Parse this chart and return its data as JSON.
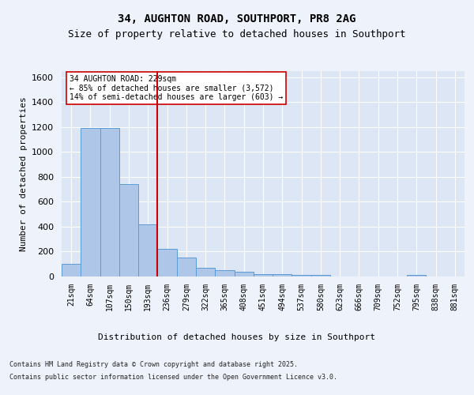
{
  "title1": "34, AUGHTON ROAD, SOUTHPORT, PR8 2AG",
  "title2": "Size of property relative to detached houses in Southport",
  "xlabel": "Distribution of detached houses by size in Southport",
  "ylabel": "Number of detached properties",
  "categories": [
    "21sqm",
    "64sqm",
    "107sqm",
    "150sqm",
    "193sqm",
    "236sqm",
    "279sqm",
    "322sqm",
    "365sqm",
    "408sqm",
    "451sqm",
    "494sqm",
    "537sqm",
    "580sqm",
    "623sqm",
    "666sqm",
    "709sqm",
    "752sqm",
    "795sqm",
    "838sqm",
    "881sqm"
  ],
  "values": [
    103,
    1195,
    1195,
    740,
    420,
    220,
    150,
    68,
    52,
    35,
    20,
    18,
    13,
    10,
    3,
    0,
    0,
    0,
    12,
    0,
    0
  ],
  "bar_color": "#aec6e8",
  "bar_edge_color": "#5b9bd5",
  "vline_index": 5,
  "vline_color": "#cc0000",
  "annotation_text": "34 AUGHTON ROAD: 229sqm\n← 85% of detached houses are smaller (3,572)\n14% of semi-detached houses are larger (603) →",
  "annotation_box_color": "#ffffff",
  "annotation_box_edge": "#cc0000",
  "footer1": "Contains HM Land Registry data © Crown copyright and database right 2025.",
  "footer2": "Contains public sector information licensed under the Open Government Licence v3.0.",
  "ylim": [
    0,
    1650
  ],
  "yticks": [
    0,
    200,
    400,
    600,
    800,
    1000,
    1200,
    1400,
    1600
  ],
  "fig_bg_color": "#eef2fa",
  "plot_bg_color": "#dce6f4",
  "title1_fontsize": 10,
  "title2_fontsize": 9,
  "ylabel_fontsize": 8,
  "xlabel_fontsize": 8,
  "tick_fontsize": 7,
  "footer_fontsize": 6,
  "annot_fontsize": 7
}
